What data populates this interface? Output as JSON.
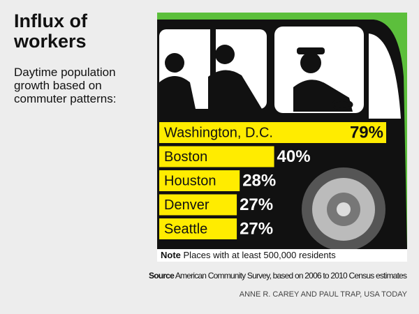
{
  "chart_data": {
    "type": "bar",
    "orientation": "horizontal",
    "title": "Influx of workers",
    "subtitle": "Daytime population growth based on commuter patterns:",
    "categories": [
      "Washington, D.C.",
      "Boston",
      "Houston",
      "Denver",
      "Seattle"
    ],
    "values": [
      79,
      40,
      28,
      27,
      27
    ],
    "value_labels": [
      "79%",
      "40%",
      "28%",
      "27%",
      "27%"
    ],
    "color": "#ffec00",
    "note_label": "Note",
    "note": "Places with at least 500,000 residents",
    "source_label": "Source",
    "source": "American Community Survey, based on 2006 to 2010 Census estimates",
    "credit": "ANNE R. CAREY AND PAUL TRAP, USA TODAY"
  }
}
